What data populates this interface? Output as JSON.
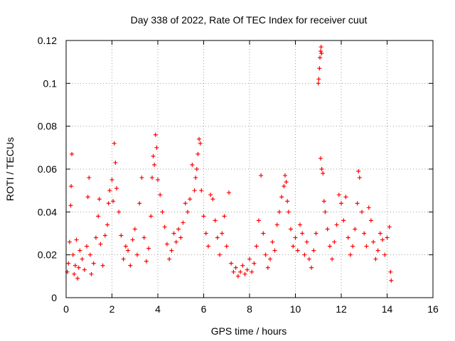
{
  "chart_data": {
    "type": "scatter",
    "title": "Day 338 of 2022, Rate Of TEC Index for receiver cuut",
    "xlabel": "GPS time / hours",
    "ylabel": "ROTI / TECUs",
    "xlim": [
      0,
      16
    ],
    "ylim": [
      0,
      0.12
    ],
    "xticks": [
      0,
      2,
      4,
      6,
      8,
      10,
      12,
      14,
      16
    ],
    "yticks": [
      0,
      0.02,
      0.04,
      0.06,
      0.08,
      0.1,
      0.12
    ],
    "ytick_labels": [
      "0",
      "0.02",
      "0.04",
      "0.06",
      "0.08",
      "0.1",
      "0.12"
    ],
    "grid": true,
    "marker": "+",
    "color": "#ff0000",
    "series": [
      {
        "points": [
          [
            0.05,
            0.012
          ],
          [
            0.1,
            0.016
          ],
          [
            0.15,
            0.026
          ],
          [
            0.2,
            0.043
          ],
          [
            0.22,
            0.052
          ],
          [
            0.25,
            0.067
          ],
          [
            0.3,
            0.02
          ],
          [
            0.35,
            0.011
          ],
          [
            0.4,
            0.015
          ],
          [
            0.45,
            0.027
          ],
          [
            0.5,
            0.009
          ],
          [
            0.55,
            0.014
          ],
          [
            0.6,
            0.022
          ],
          [
            0.7,
            0.018
          ],
          [
            0.8,
            0.013
          ],
          [
            0.9,
            0.024
          ],
          [
            0.95,
            0.047
          ],
          [
            1.0,
            0.056
          ],
          [
            1.05,
            0.02
          ],
          [
            1.1,
            0.011
          ],
          [
            1.2,
            0.016
          ],
          [
            1.3,
            0.028
          ],
          [
            1.4,
            0.038
          ],
          [
            1.45,
            0.046
          ],
          [
            1.5,
            0.025
          ],
          [
            1.6,
            0.015
          ],
          [
            1.7,
            0.029
          ],
          [
            1.8,
            0.034
          ],
          [
            1.85,
            0.044
          ],
          [
            1.9,
            0.05
          ],
          [
            2.0,
            0.055
          ],
          [
            2.05,
            0.045
          ],
          [
            2.1,
            0.072
          ],
          [
            2.15,
            0.063
          ],
          [
            2.2,
            0.051
          ],
          [
            2.3,
            0.04
          ],
          [
            2.4,
            0.029
          ],
          [
            2.5,
            0.018
          ],
          [
            2.6,
            0.024
          ],
          [
            2.7,
            0.022
          ],
          [
            2.8,
            0.015
          ],
          [
            2.9,
            0.027
          ],
          [
            3.0,
            0.032
          ],
          [
            3.1,
            0.02
          ],
          [
            3.2,
            0.044
          ],
          [
            3.3,
            0.056
          ],
          [
            3.4,
            0.028
          ],
          [
            3.5,
            0.017
          ],
          [
            3.6,
            0.023
          ],
          [
            3.7,
            0.038
          ],
          [
            3.75,
            0.056
          ],
          [
            3.8,
            0.066
          ],
          [
            3.85,
            0.062
          ],
          [
            3.9,
            0.076
          ],
          [
            3.95,
            0.07
          ],
          [
            4.0,
            0.055
          ],
          [
            4.1,
            0.048
          ],
          [
            4.2,
            0.04
          ],
          [
            4.3,
            0.033
          ],
          [
            4.4,
            0.025
          ],
          [
            4.5,
            0.018
          ],
          [
            4.6,
            0.022
          ],
          [
            4.7,
            0.03
          ],
          [
            4.8,
            0.026
          ],
          [
            4.9,
            0.032
          ],
          [
            5.0,
            0.028
          ],
          [
            5.1,
            0.035
          ],
          [
            5.2,
            0.044
          ],
          [
            5.3,
            0.04
          ],
          [
            5.4,
            0.046
          ],
          [
            5.5,
            0.062
          ],
          [
            5.6,
            0.05
          ],
          [
            5.65,
            0.056
          ],
          [
            5.7,
            0.06
          ],
          [
            5.75,
            0.067
          ],
          [
            5.8,
            0.074
          ],
          [
            5.85,
            0.072
          ],
          [
            5.9,
            0.05
          ],
          [
            6.0,
            0.038
          ],
          [
            6.1,
            0.03
          ],
          [
            6.2,
            0.024
          ],
          [
            6.3,
            0.048
          ],
          [
            6.4,
            0.046
          ],
          [
            6.5,
            0.036
          ],
          [
            6.6,
            0.028
          ],
          [
            6.7,
            0.02
          ],
          [
            6.8,
            0.03
          ],
          [
            6.9,
            0.038
          ],
          [
            7.0,
            0.024
          ],
          [
            7.1,
            0.049
          ],
          [
            7.2,
            0.016
          ],
          [
            7.3,
            0.012
          ],
          [
            7.4,
            0.014
          ],
          [
            7.5,
            0.01
          ],
          [
            7.6,
            0.012
          ],
          [
            7.7,
            0.015
          ],
          [
            7.8,
            0.011
          ],
          [
            7.9,
            0.013
          ],
          [
            8.0,
            0.018
          ],
          [
            8.1,
            0.012
          ],
          [
            8.2,
            0.016
          ],
          [
            8.3,
            0.024
          ],
          [
            8.4,
            0.036
          ],
          [
            8.5,
            0.057
          ],
          [
            8.6,
            0.03
          ],
          [
            8.7,
            0.02
          ],
          [
            8.8,
            0.014
          ],
          [
            8.9,
            0.018
          ],
          [
            9.0,
            0.026
          ],
          [
            9.1,
            0.022
          ],
          [
            9.2,
            0.034
          ],
          [
            9.3,
            0.04
          ],
          [
            9.4,
            0.047
          ],
          [
            9.5,
            0.052
          ],
          [
            9.55,
            0.057
          ],
          [
            9.6,
            0.054
          ],
          [
            9.65,
            0.045
          ],
          [
            9.7,
            0.04
          ],
          [
            9.8,
            0.032
          ],
          [
            9.9,
            0.024
          ],
          [
            10.0,
            0.028
          ],
          [
            10.1,
            0.022
          ],
          [
            10.2,
            0.034
          ],
          [
            10.3,
            0.03
          ],
          [
            10.4,
            0.02
          ],
          [
            10.5,
            0.026
          ],
          [
            10.6,
            0.018
          ],
          [
            10.7,
            0.014
          ],
          [
            10.8,
            0.022
          ],
          [
            10.9,
            0.03
          ],
          [
            11.0,
            0.1
          ],
          [
            11.02,
            0.102
          ],
          [
            11.05,
            0.107
          ],
          [
            11.07,
            0.112
          ],
          [
            11.1,
            0.115
          ],
          [
            11.12,
            0.117
          ],
          [
            11.14,
            0.114
          ],
          [
            11.1,
            0.065
          ],
          [
            11.15,
            0.06
          ],
          [
            11.2,
            0.058
          ],
          [
            11.25,
            0.045
          ],
          [
            11.3,
            0.04
          ],
          [
            11.4,
            0.032
          ],
          [
            11.5,
            0.024
          ],
          [
            11.6,
            0.018
          ],
          [
            11.7,
            0.026
          ],
          [
            11.8,
            0.034
          ],
          [
            11.9,
            0.048
          ],
          [
            12.0,
            0.044
          ],
          [
            12.1,
            0.036
          ],
          [
            12.2,
            0.047
          ],
          [
            12.3,
            0.028
          ],
          [
            12.4,
            0.02
          ],
          [
            12.5,
            0.024
          ],
          [
            12.6,
            0.032
          ],
          [
            12.7,
            0.044
          ],
          [
            12.75,
            0.059
          ],
          [
            12.8,
            0.056
          ],
          [
            12.9,
            0.04
          ],
          [
            13.0,
            0.03
          ],
          [
            13.1,
            0.024
          ],
          [
            13.2,
            0.042
          ],
          [
            13.3,
            0.036
          ],
          [
            13.4,
            0.026
          ],
          [
            13.5,
            0.018
          ],
          [
            13.6,
            0.022
          ],
          [
            13.7,
            0.03
          ],
          [
            13.8,
            0.027
          ],
          [
            13.9,
            0.02
          ],
          [
            14.0,
            0.028
          ],
          [
            14.1,
            0.033
          ],
          [
            14.15,
            0.012
          ],
          [
            14.18,
            0.008
          ]
        ]
      }
    ]
  }
}
